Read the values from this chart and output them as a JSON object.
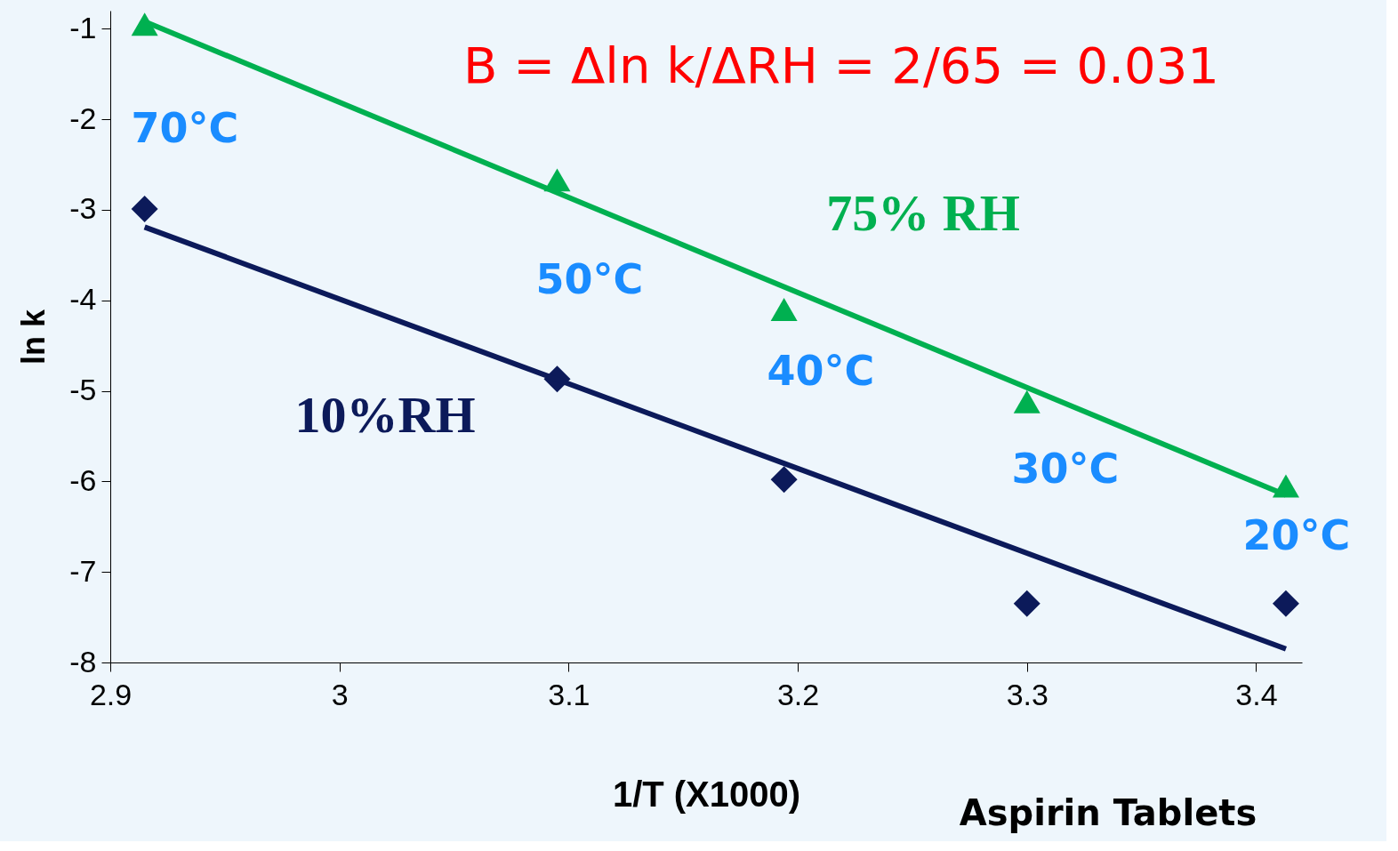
{
  "chart_data": {
    "type": "scatter",
    "xlabel": "1/T (X1000)",
    "ylabel": "ln k",
    "xlim": [
      2.9,
      3.42
    ],
    "ylim": [
      -8,
      -0.8
    ],
    "xticks": [
      2.9,
      3,
      3.1,
      3.2,
      3.3,
      3.4
    ],
    "yticks": [
      -8,
      -7,
      -6,
      -5,
      -4,
      -3,
      -2,
      -1
    ],
    "grid": false,
    "series": [
      {
        "name": "75% RH",
        "color": "#00b050",
        "marker": "triangle",
        "x": [
          2.915,
          3.095,
          3.194,
          3.3,
          3.413
        ],
        "values": [
          -0.95,
          -2.67,
          -4.1,
          -5.12,
          -6.05
        ]
      },
      {
        "name": "10%RH",
        "color": "#0c1a5a",
        "marker": "diamond",
        "x": [
          2.915,
          3.095,
          3.194,
          3.3,
          3.413
        ],
        "values": [
          -2.99,
          -4.87,
          -5.98,
          -7.35,
          -7.35
        ]
      },
      {
        "type": "line",
        "color": "#00b050",
        "x": [
          2.915,
          3.413
        ],
        "values": [
          -0.92,
          -6.15
        ]
      },
      {
        "type": "line",
        "color": "#0c1a5a",
        "x": [
          2.915,
          3.413
        ],
        "values": [
          -3.19,
          -7.85
        ]
      }
    ],
    "annotations": [
      "B = Δln k/ΔRH = 2/65 = 0.031",
      "Aspirin Tablets",
      "70°C",
      "50°C",
      "40°C",
      "30°C",
      "20°C"
    ]
  }
}
